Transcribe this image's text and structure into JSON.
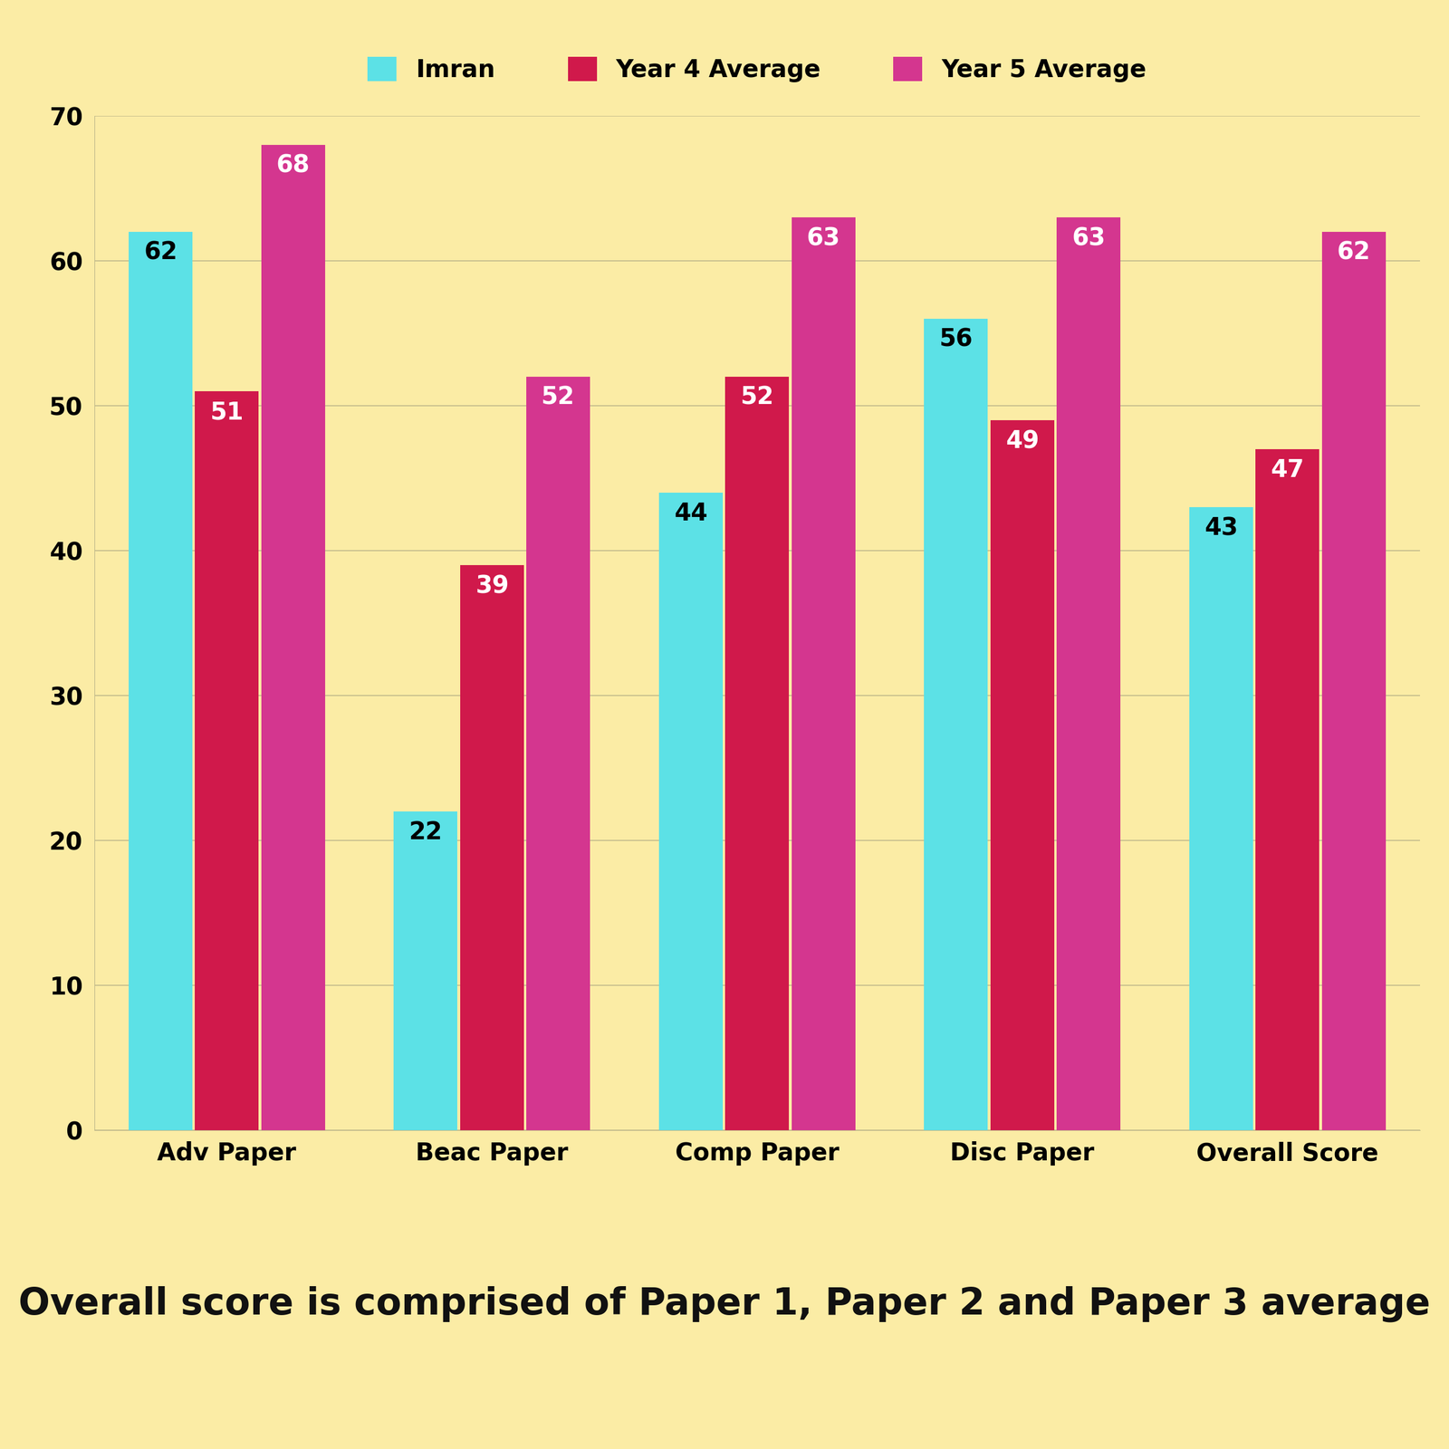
{
  "chart_data": {
    "type": "bar",
    "categories": [
      "Adv Paper",
      "Beac Paper",
      "Comp Paper",
      "Disc Paper",
      "Overall Score"
    ],
    "series": [
      {
        "name": "Imran",
        "color": "#5ce1e6",
        "values": [
          62,
          22,
          44,
          56,
          43
        ]
      },
      {
        "name": "Year 4 Average",
        "color": "#d0194b",
        "values": [
          51,
          39,
          52,
          49,
          47
        ]
      },
      {
        "name": "Year 5 Average",
        "color": "#d4368f",
        "values": [
          68,
          52,
          63,
          63,
          62
        ]
      }
    ],
    "ylim": [
      0,
      70
    ],
    "yticks": [
      0,
      10,
      20,
      30,
      40,
      50,
      60,
      70
    ],
    "grid": true,
    "legend": "upper center",
    "data_labels": true,
    "annotations": [
      "Overall score is comprised of Paper 1, Paper 2 and Paper 3 average"
    ]
  }
}
